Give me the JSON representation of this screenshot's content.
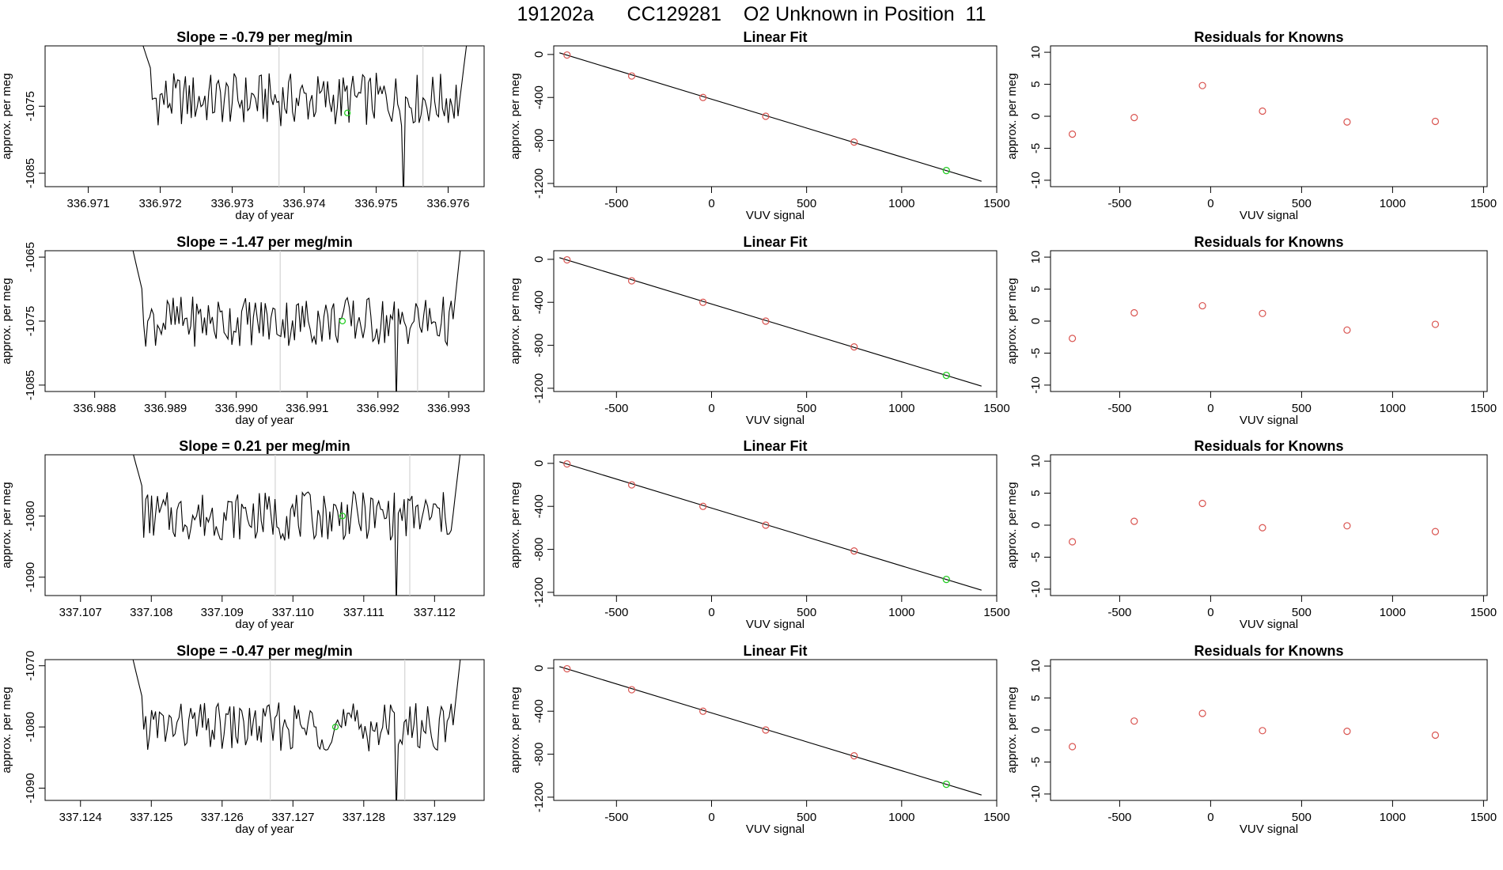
{
  "page": {
    "title_parts": [
      "191202a",
      "CC129281",
      "O2 Unknown in Position  11"
    ]
  },
  "colors": {
    "axis": "#000000",
    "trace": "#000000",
    "marker_vline": "#d3d3d3",
    "unknown_point": "#22cc22",
    "known_points": "#d9534f",
    "fit_line": "#000000"
  },
  "chart_data": [
    {
      "type": "line",
      "title": "Slope =  -0.79  per meg/min",
      "xlabel": "day of year",
      "ylabel": "approx. per meg",
      "xlim": [
        336.9704,
        336.9765
      ],
      "ylim": [
        -1087,
        -1066
      ],
      "xticks": [
        "336.971",
        "336.972",
        "336.973",
        "336.974",
        "336.975",
        "336.976"
      ],
      "xtick_values": [
        336.971,
        336.972,
        336.973,
        336.974,
        336.975,
        336.976
      ],
      "yticks": [
        "-1085",
        "-1075"
      ],
      "ytick_values": [
        -1085,
        -1075
      ],
      "trace_start": 336.9717,
      "trace_end": 336.9763,
      "base": -1074,
      "amplitude": 4,
      "vlines": [
        336.97365,
        336.97565
      ],
      "unknown_point": {
        "x": 336.9746,
        "y": -1076
      }
    },
    {
      "type": "scatter",
      "title": "Linear Fit",
      "xlabel": "VUV signal",
      "ylabel": "approx. per meg",
      "xlim": [
        -830,
        1500
      ],
      "ylim": [
        -1230,
        80
      ],
      "xticks": [
        "-500",
        "0",
        "500",
        "1000",
        "1500"
      ],
      "xtick_values": [
        -500,
        0,
        500,
        1000,
        1500
      ],
      "yticks": [
        "0",
        "-400",
        "-800",
        "-1200"
      ],
      "ytick_values": [
        0,
        -400,
        -800,
        -1200
      ],
      "known_points": {
        "x": [
          -760,
          -420,
          -45,
          285,
          750
        ],
        "y": [
          -5,
          -200,
          -400,
          -575,
          -815
        ]
      },
      "unknown_point": {
        "x": 1235,
        "y": -1080
      },
      "fit_line": {
        "x": [
          -800,
          1420
        ],
        "y": [
          15,
          -1180
        ]
      }
    },
    {
      "type": "scatter",
      "title": "Residuals for Knowns",
      "xlabel": "VUV signal",
      "ylabel": "approx. per meg",
      "xlim": [
        -880,
        1520
      ],
      "ylim": [
        -11,
        11
      ],
      "xticks": [
        "-500",
        "0",
        "500",
        "1000",
        "1500"
      ],
      "xtick_values": [
        -500,
        0,
        500,
        1000,
        1500
      ],
      "yticks": [
        "10",
        "5",
        "0",
        "-5",
        "-10"
      ],
      "ytick_values": [
        10,
        5,
        0,
        -5,
        -10
      ],
      "x": [
        -760,
        -420,
        -45,
        285,
        750,
        1235
      ],
      "y": [
        -2.8,
        -0.2,
        4.8,
        0.8,
        -0.9,
        -0.8
      ]
    },
    {
      "type": "line",
      "title": "Slope =  -1.47  per meg/min",
      "xlabel": "day of year",
      "ylabel": "approx. per meg",
      "xlim": [
        336.9873,
        336.9935
      ],
      "ylim": [
        -1086,
        -1064
      ],
      "xticks": [
        "336.988",
        "336.989",
        "336.990",
        "336.991",
        "336.992",
        "336.993"
      ],
      "xtick_values": [
        336.988,
        336.989,
        336.99,
        336.991,
        336.992,
        336.993
      ],
      "yticks": [
        "-1085",
        "-1075",
        "-1065"
      ],
      "ytick_values": [
        -1085,
        -1075,
        -1065
      ],
      "trace_start": 336.9885,
      "trace_end": 336.9932,
      "base": -1075,
      "amplitude": 4,
      "vlines": [
        336.99062,
        336.99256
      ],
      "unknown_point": {
        "x": 336.9915,
        "y": -1075
      }
    },
    {
      "type": "scatter",
      "title": "Linear Fit",
      "xlabel": "VUV signal",
      "ylabel": "approx. per meg",
      "xlim": [
        -830,
        1500
      ],
      "ylim": [
        -1230,
        80
      ],
      "xticks": [
        "-500",
        "0",
        "500",
        "1000",
        "1500"
      ],
      "xtick_values": [
        -500,
        0,
        500,
        1000,
        1500
      ],
      "yticks": [
        "0",
        "-400",
        "-800",
        "-1200"
      ],
      "ytick_values": [
        0,
        -400,
        -800,
        -1200
      ],
      "known_points": {
        "x": [
          -760,
          -420,
          -45,
          285,
          750
        ],
        "y": [
          -5,
          -200,
          -400,
          -575,
          -815
        ]
      },
      "unknown_point": {
        "x": 1235,
        "y": -1080
      },
      "fit_line": {
        "x": [
          -800,
          1420
        ],
        "y": [
          15,
          -1180
        ]
      }
    },
    {
      "type": "scatter",
      "title": "Residuals for Knowns",
      "xlabel": "VUV signal",
      "ylabel": "approx. per meg",
      "xlim": [
        -880,
        1520
      ],
      "ylim": [
        -11,
        11
      ],
      "xticks": [
        "-500",
        "0",
        "500",
        "1000",
        "1500"
      ],
      "xtick_values": [
        -500,
        0,
        500,
        1000,
        1500
      ],
      "yticks": [
        "10",
        "5",
        "0",
        "-5",
        "-10"
      ],
      "ytick_values": [
        10,
        5,
        0,
        -5,
        -10
      ],
      "x": [
        -760,
        -420,
        -45,
        285,
        750,
        1235
      ],
      "y": [
        -2.7,
        1.3,
        2.4,
        1.2,
        -1.4,
        -0.5
      ]
    },
    {
      "type": "line",
      "title": "Slope =  0.21  per meg/min",
      "xlabel": "day of year",
      "ylabel": "approx. per meg",
      "xlim": [
        337.1065,
        337.1127
      ],
      "ylim": [
        -1093,
        -1070
      ],
      "xticks": [
        "337.107",
        "337.108",
        "337.109",
        "337.110",
        "337.111",
        "337.112"
      ],
      "xtick_values": [
        337.107,
        337.108,
        337.109,
        337.11,
        337.111,
        337.112
      ],
      "yticks": [
        "-1090",
        "-1080"
      ],
      "ytick_values": [
        -1090,
        -1080
      ],
      "trace_start": 337.1077,
      "trace_end": 337.1124,
      "base": -1080,
      "amplitude": 4,
      "vlines": [
        337.10975,
        337.11165
      ],
      "unknown_point": {
        "x": 337.1107,
        "y": -1080
      }
    },
    {
      "type": "scatter",
      "title": "Linear Fit",
      "xlabel": "VUV signal",
      "ylabel": "approx. per meg",
      "xlim": [
        -830,
        1500
      ],
      "ylim": [
        -1230,
        80
      ],
      "xticks": [
        "-500",
        "0",
        "500",
        "1000",
        "1500"
      ],
      "xtick_values": [
        -500,
        0,
        500,
        1000,
        1500
      ],
      "yticks": [
        "0",
        "-400",
        "-800",
        "-1200"
      ],
      "ytick_values": [
        0,
        -400,
        -800,
        -1200
      ],
      "known_points": {
        "x": [
          -760,
          -420,
          -45,
          285,
          750
        ],
        "y": [
          -5,
          -200,
          -400,
          -575,
          -815
        ]
      },
      "unknown_point": {
        "x": 1235,
        "y": -1080
      },
      "fit_line": {
        "x": [
          -800,
          1420
        ],
        "y": [
          15,
          -1180
        ]
      }
    },
    {
      "type": "scatter",
      "title": "Residuals for Knowns",
      "xlabel": "VUV signal",
      "ylabel": "approx. per meg",
      "xlim": [
        -880,
        1520
      ],
      "ylim": [
        -11,
        11
      ],
      "xticks": [
        "-500",
        "0",
        "500",
        "1000",
        "1500"
      ],
      "xtick_values": [
        -500,
        0,
        500,
        1000,
        1500
      ],
      "yticks": [
        "10",
        "5",
        "0",
        "-5",
        "-10"
      ],
      "x": [
        -760,
        -420,
        -45,
        285,
        750,
        1235
      ],
      "y": [
        -2.6,
        0.6,
        3.4,
        -0.4,
        -0.1,
        -1.0
      ],
      "ytick_values": [
        10,
        5,
        0,
        -5,
        -10
      ]
    },
    {
      "type": "line",
      "title": "Slope =  -0.47  per meg/min",
      "xlabel": "day of year",
      "ylabel": "approx. per meg",
      "xlim": [
        337.1235,
        337.1297
      ],
      "ylim": [
        -1092,
        -1069
      ],
      "xticks": [
        "337.124",
        "337.125",
        "337.126",
        "337.127",
        "337.128",
        "337.129"
      ],
      "xtick_values": [
        337.124,
        337.125,
        337.126,
        337.127,
        337.128,
        337.129
      ],
      "yticks": [
        "-1090",
        "-1080",
        "-1070"
      ],
      "ytick_values": [
        -1090,
        -1080,
        -1070
      ],
      "trace_start": 337.1247,
      "trace_end": 337.1294,
      "base": -1080,
      "amplitude": 4,
      "vlines": [
        337.12668,
        337.12858
      ],
      "unknown_point": {
        "x": 337.1276,
        "y": -1080
      }
    },
    {
      "type": "scatter",
      "title": "Linear Fit",
      "xlabel": "VUV signal",
      "ylabel": "approx. per meg",
      "xlim": [
        -830,
        1500
      ],
      "ylim": [
        -1230,
        80
      ],
      "xticks": [
        "-500",
        "0",
        "500",
        "1000",
        "1500"
      ],
      "xtick_values": [
        -500,
        0,
        500,
        1000,
        1500
      ],
      "yticks": [
        "0",
        "-400",
        "-800",
        "-1200"
      ],
      "ytick_values": [
        0,
        -400,
        -800,
        -1200
      ],
      "known_points": {
        "x": [
          -760,
          -420,
          -45,
          285,
          750
        ],
        "y": [
          -5,
          -200,
          -400,
          -575,
          -815
        ]
      },
      "unknown_point": {
        "x": 1235,
        "y": -1080
      },
      "fit_line": {
        "x": [
          -800,
          1420
        ],
        "y": [
          15,
          -1180
        ]
      }
    },
    {
      "type": "scatter",
      "title": "Residuals for Knowns",
      "xlabel": "VUV signal",
      "ylabel": "approx. per meg",
      "xlim": [
        -880,
        1520
      ],
      "ylim": [
        -11,
        11
      ],
      "xticks": [
        "-500",
        "0",
        "500",
        "1000",
        "1500"
      ],
      "xtick_values": [
        -500,
        0,
        500,
        1000,
        1500
      ],
      "yticks": [
        "10",
        "5",
        "0",
        "-5",
        "-10"
      ],
      "ytick_values": [
        10,
        5,
        0,
        -5,
        -10
      ],
      "x": [
        -760,
        -420,
        -45,
        285,
        750,
        1235
      ],
      "y": [
        -2.6,
        1.4,
        2.6,
        -0.1,
        -0.2,
        -0.8
      ]
    }
  ]
}
